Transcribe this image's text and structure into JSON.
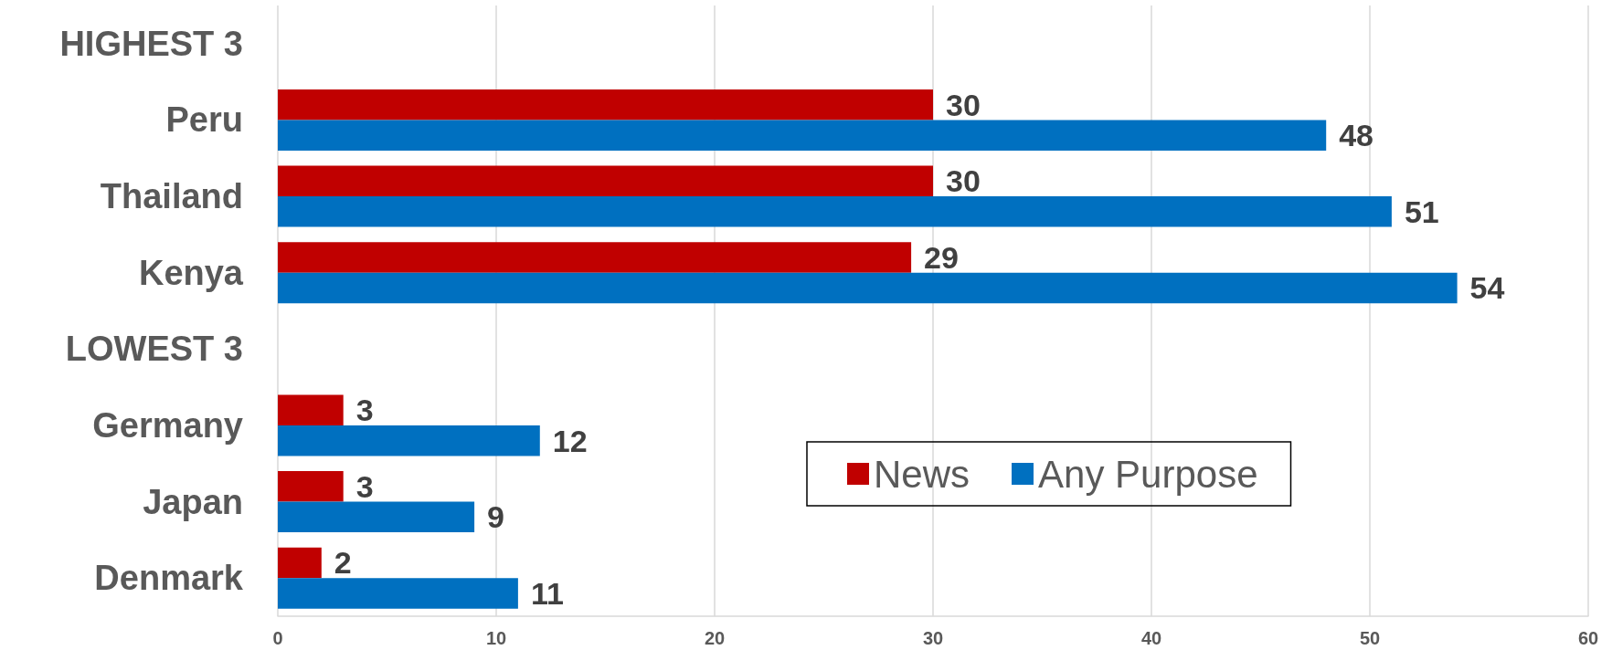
{
  "chart_data": {
    "type": "bar",
    "orientation": "horizontal",
    "categories": [
      "HIGHEST 3",
      "Peru",
      "Thailand",
      "Kenya",
      "LOWEST 3",
      "Germany",
      "Japan",
      "Denmark"
    ],
    "series": [
      {
        "name": "News",
        "color": "#c00000",
        "values": [
          null,
          30,
          30,
          29,
          null,
          3,
          3,
          2
        ]
      },
      {
        "name": "Any Purpose",
        "color": "#0070c0",
        "values": [
          null,
          48,
          51,
          54,
          null,
          12,
          9,
          11
        ]
      }
    ],
    "xlim": [
      0,
      60
    ],
    "xticks": [
      0,
      10,
      20,
      30,
      40,
      50,
      60
    ],
    "grid": "x",
    "legend": "bottom right",
    "data_labels": true
  }
}
